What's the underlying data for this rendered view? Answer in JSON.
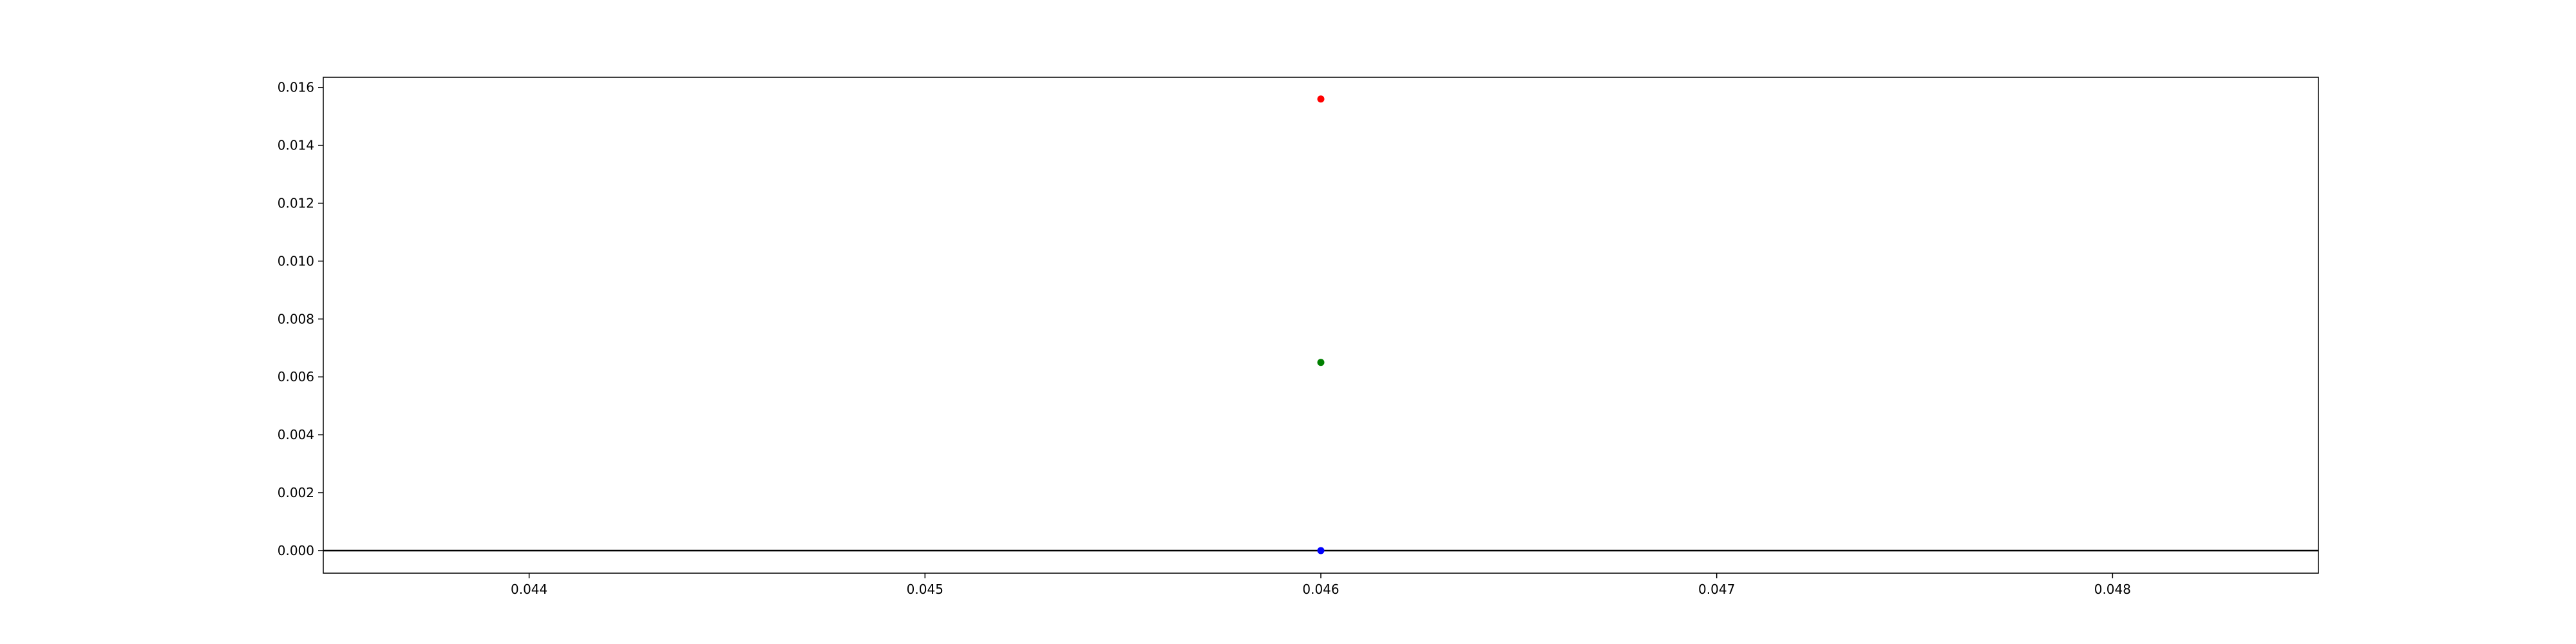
{
  "chart_data": {
    "type": "scatter",
    "title": "",
    "xlabel": "",
    "ylabel": "",
    "xlim": [
      0.04348,
      0.04852
    ],
    "ylim": [
      -0.00078,
      0.01635
    ],
    "xticks": [
      0.044,
      0.045,
      0.046,
      0.047,
      0.048
    ],
    "xtick_labels": [
      "0.044",
      "0.045",
      "0.046",
      "0.047",
      "0.048"
    ],
    "yticks": [
      0.0,
      0.002,
      0.004,
      0.006,
      0.008,
      0.01,
      0.012,
      0.014,
      0.016
    ],
    "ytick_labels": [
      "0.000",
      "0.002",
      "0.004",
      "0.006",
      "0.008",
      "0.010",
      "0.012",
      "0.014",
      "0.016"
    ],
    "grid": false,
    "legend": "none",
    "hline": {
      "y": 0.0,
      "color": "#000000"
    },
    "series": [
      {
        "color": "#ff0000",
        "points": [
          {
            "x": 0.046,
            "y": 0.0156
          }
        ]
      },
      {
        "color": "#008000",
        "points": [
          {
            "x": 0.046,
            "y": 0.0065
          }
        ]
      },
      {
        "color": "#0000ff",
        "points": [
          {
            "x": 0.046,
            "y": 0.0
          }
        ]
      }
    ]
  }
}
